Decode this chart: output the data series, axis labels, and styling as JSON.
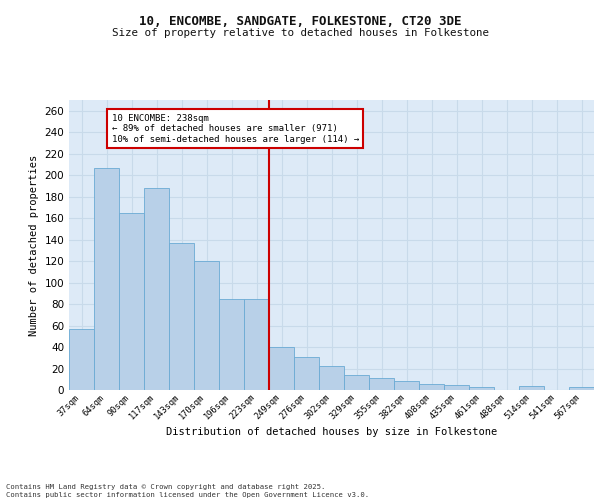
{
  "title1": "10, ENCOMBE, SANDGATE, FOLKESTONE, CT20 3DE",
  "title2": "Size of property relative to detached houses in Folkestone",
  "xlabel": "Distribution of detached houses by size in Folkestone",
  "ylabel": "Number of detached properties",
  "categories": [
    "37sqm",
    "64sqm",
    "90sqm",
    "117sqm",
    "143sqm",
    "170sqm",
    "196sqm",
    "223sqm",
    "249sqm",
    "276sqm",
    "302sqm",
    "329sqm",
    "355sqm",
    "382sqm",
    "408sqm",
    "435sqm",
    "461sqm",
    "488sqm",
    "514sqm",
    "541sqm",
    "567sqm"
  ],
  "values": [
    57,
    207,
    165,
    188,
    137,
    120,
    85,
    85,
    40,
    31,
    22,
    14,
    11,
    8,
    6,
    5,
    3,
    0,
    4,
    0,
    3
  ],
  "bar_color": "#b8d0e8",
  "bar_edge_color": "#6aaad4",
  "vline_x_idx": 8,
  "vline_color": "#cc0000",
  "annotation_text": "10 ENCOMBE: 238sqm\n← 89% of detached houses are smaller (971)\n10% of semi-detached houses are larger (114) →",
  "annotation_box_color": "#ffffff",
  "annotation_box_edge": "#cc0000",
  "ylim": [
    0,
    270
  ],
  "yticks": [
    0,
    20,
    40,
    60,
    80,
    100,
    120,
    140,
    160,
    180,
    200,
    220,
    240,
    260
  ],
  "grid_color": "#c8daea",
  "background_color": "#ddeaf7",
  "footer_line1": "Contains HM Land Registry data © Crown copyright and database right 2025.",
  "footer_line2": "Contains public sector information licensed under the Open Government Licence v3.0."
}
